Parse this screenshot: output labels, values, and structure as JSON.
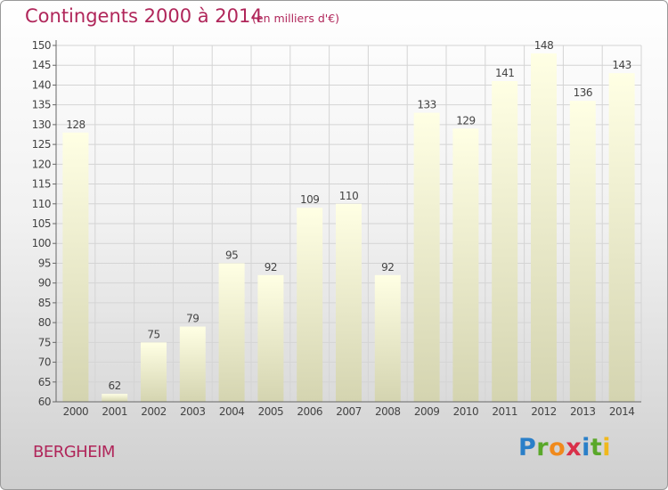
{
  "header": {
    "title": "Contingents 2000 à 2014",
    "subtitle": "(en milliers d'€)"
  },
  "footer": {
    "place": "BERGHEIM",
    "logo": {
      "letters": [
        "P",
        "r",
        "o",
        "x",
        "i",
        "t",
        "i"
      ],
      "colors": [
        "#2a7fc8",
        "#5aa82a",
        "#f08a1c",
        "#d9304a",
        "#2a7fc8",
        "#5aa82a",
        "#f0b81c"
      ]
    }
  },
  "chart_data": {
    "type": "bar",
    "title": "Contingents 2000 à 2014",
    "subtitle": "(en milliers d'€)",
    "categories": [
      "2000",
      "2001",
      "2002",
      "2003",
      "2004",
      "2005",
      "2006",
      "2007",
      "2008",
      "2009",
      "2010",
      "2011",
      "2012",
      "2013",
      "2014"
    ],
    "values": [
      128,
      62,
      75,
      79,
      95,
      92,
      109,
      110,
      92,
      133,
      129,
      141,
      148,
      136,
      143
    ],
    "data_labels": [
      "128",
      "62",
      "75",
      "79",
      "95",
      "92",
      "109",
      "110",
      "92",
      "133",
      "129",
      "141",
      "148",
      "136",
      "143"
    ],
    "yticks": [
      60,
      65,
      70,
      75,
      80,
      85,
      90,
      95,
      100,
      105,
      110,
      115,
      120,
      125,
      130,
      135,
      140,
      145,
      150
    ],
    "ylim": [
      60,
      150
    ],
    "xlabel": "",
    "ylabel": "",
    "grid": true,
    "colors": {
      "bar_top": "#ffffe4",
      "bar_bottom": "#d4d4b0",
      "grid": "#d4d4d4",
      "axis": "#666666",
      "text": "#444444"
    }
  }
}
